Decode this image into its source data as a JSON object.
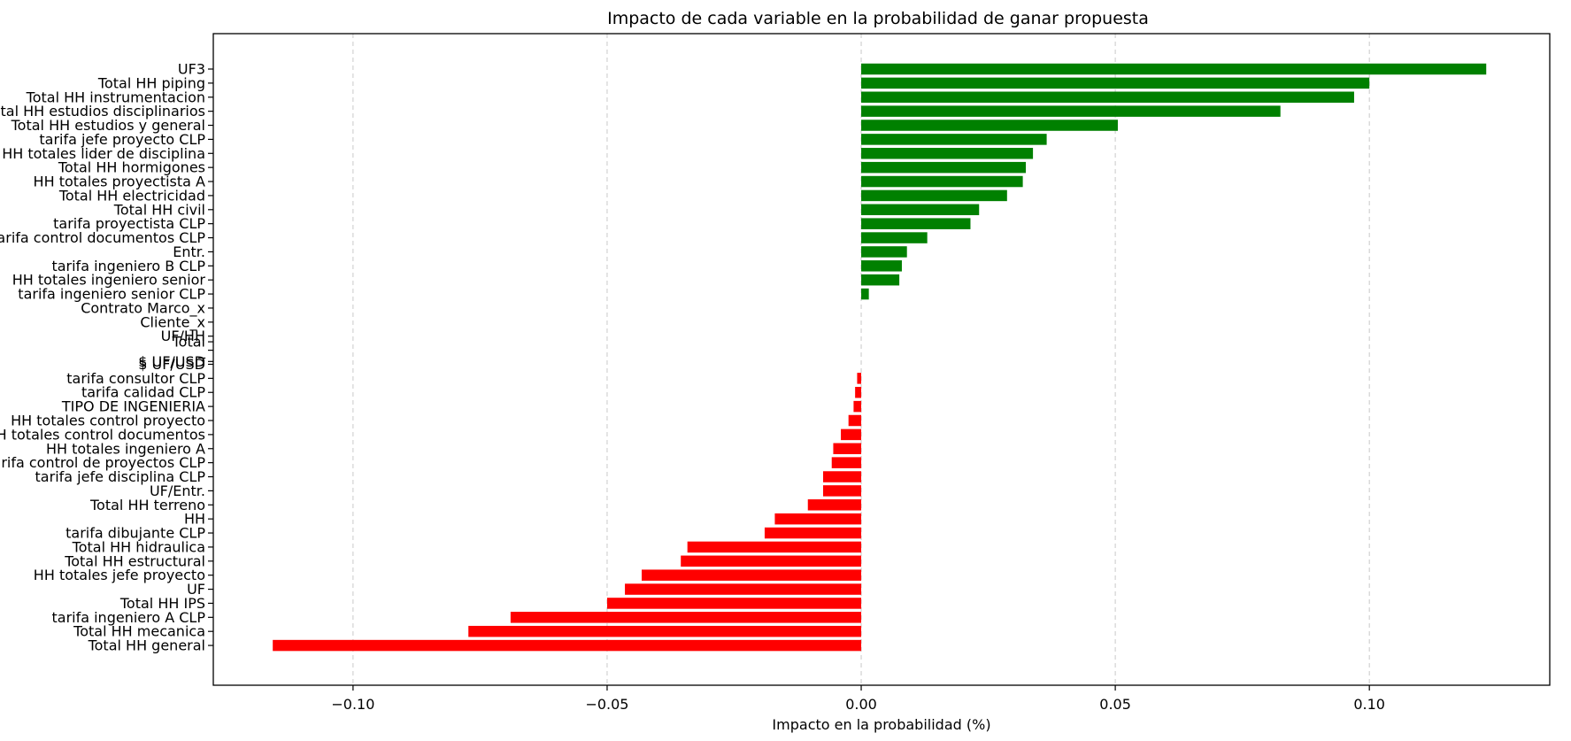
{
  "chart_data": {
    "type": "bar",
    "orientation": "horizontal",
    "title": "Impacto de cada variable en la probabilidad de ganar propuesta",
    "xlabel": "Impacto en la probabilidad (%)",
    "ylabel": "",
    "xlim": [
      -0.1275,
      0.1355
    ],
    "xticks": [
      -0.1,
      -0.05,
      0.0,
      0.05,
      0.1
    ],
    "xtick_labels": [
      "−0.10",
      "−0.05",
      "0.00",
      "0.05",
      "0.10"
    ],
    "grid": "x-dashed",
    "colors": {
      "positive": "#008000",
      "negative": "#ff0000"
    },
    "categories": [
      "UF3",
      "Total HH piping",
      "Total HH instrumentacion",
      "Total HH estudios disciplinarios",
      "Total HH estudios y general",
      "tarifa jefe proyecto CLP",
      "HH totales lider de disciplina",
      "Total HH hormigones",
      "HH totales proyectista A",
      "Total HH electricidad",
      "Total HH civil",
      "tarifa proyectista CLP",
      "tarifa control documentos CLP",
      "Entr.",
      "tarifa ingeniero B CLP",
      "HH totales ingeniero senior",
      "tarifa ingeniero senior CLP",
      "Contrato Marco_x",
      "Cliente_x",
      "UF/HH",
      "Total",
      "_",
      "$ UF/USD",
      "$ UF/USD",
      "tarifa consultor CLP",
      "tarifa calidad CLP",
      "TIPO DE INGENIERIA",
      "HH totales control proyecto",
      "HH totales control documentos",
      "HH totales ingeniero A",
      "tarifa control de proyectos CLP",
      "tarifa jefe disciplina CLP",
      "UF/Entr.",
      "Total HH terreno",
      "HH",
      "tarifa dibujante CLP",
      "Total HH hidraulica",
      "Total HH estructural",
      "HH totales jefe proyecto",
      "UF",
      "Total HH IPS",
      "tarifa ingeniero A CLP",
      "Total HH mecanica",
      "Total HH general"
    ],
    "positions": [
      0,
      1,
      2,
      3,
      4,
      5,
      6,
      7,
      8,
      9,
      10,
      11,
      12,
      13,
      14,
      15,
      16,
      17,
      18,
      19,
      19.4,
      20,
      20.8,
      21,
      22,
      23,
      24,
      25,
      26,
      27,
      28,
      29,
      30,
      31,
      32,
      33,
      34,
      35,
      36,
      37,
      38,
      39,
      40,
      41
    ],
    "values": [
      0.123,
      0.1,
      0.097,
      0.0825,
      0.0505,
      0.0365,
      0.0338,
      0.0324,
      0.0318,
      0.0287,
      0.0232,
      0.0215,
      0.013,
      0.009,
      0.008,
      0.0075,
      0.0015,
      0.0,
      0.0,
      0.0,
      0.0,
      0.0,
      0.0,
      0.0,
      -0.0008,
      -0.0012,
      -0.0015,
      -0.0025,
      -0.004,
      -0.0055,
      -0.0058,
      -0.0075,
      -0.0075,
      -0.0105,
      -0.017,
      -0.019,
      -0.0342,
      -0.0355,
      -0.0432,
      -0.0465,
      -0.05,
      -0.069,
      -0.0773,
      -0.1158
    ]
  }
}
